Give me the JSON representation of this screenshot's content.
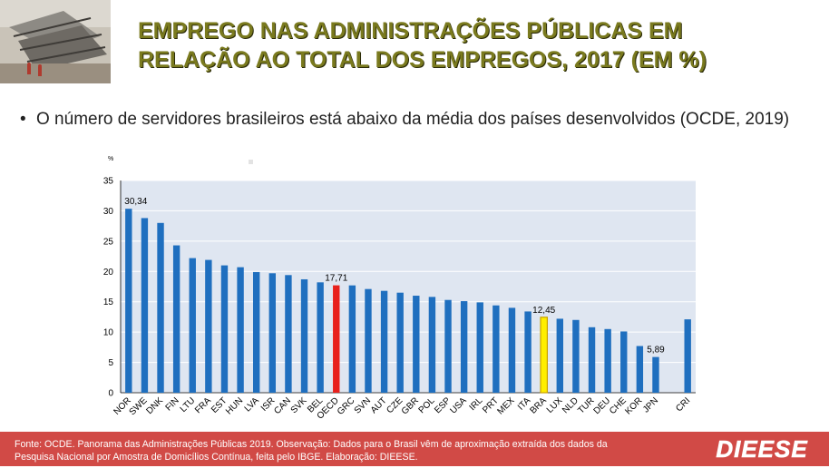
{
  "slide": {
    "title_line1": "EMPREGO NAS ADMINISTRAÇÕES PÚBLICAS EM",
    "title_line2": "RELAÇÃO AO TOTAL DOS EMPREGOS, 2017 (EM %)",
    "bullet": "O número de servidores brasileiros está abaixo da média dos países desenvolvidos (OCDE, 2019)",
    "footer_line1": "Fonte: OCDE. Panorama das Administrações Públicas 2019.  Observação: Dados para o Brasil vêm de aproximação extraída dos dados da",
    "footer_line2": "Pesquisa Nacional por Amostra de Domicílios Contínua, feita pelo IBGE. Elaboração: DIEESE.",
    "logo_text": "DIEESE"
  },
  "colors": {
    "bar": "#1f6fbf",
    "oecd": "#e8201c",
    "bra": "#ffee00",
    "bra_border": "#c8a000",
    "footer": "#d14a46",
    "title": "#7a7a1e"
  },
  "chart_data": {
    "type": "bar",
    "unit_label": "%",
    "ylim": [
      0,
      35
    ],
    "yticks": [
      0,
      5,
      10,
      15,
      20,
      25,
      30,
      35
    ],
    "grid": true,
    "categories": [
      "NOR",
      "SWE",
      "DNK",
      "FIN",
      "LTU",
      "FRA",
      "EST",
      "HUN",
      "LVA",
      "ISR",
      "CAN",
      "SVK",
      "BEL",
      "OECD",
      "GRC",
      "SVN",
      "AUT",
      "CZE",
      "GBR",
      "POL",
      "ESP",
      "USA",
      "IRL",
      "PRT",
      "MEX",
      "ITA",
      "BRA",
      "LUX",
      "NLD",
      "TUR",
      "DEU",
      "CHE",
      "KOR",
      "JPN",
      "",
      "CRI"
    ],
    "values": [
      30.34,
      28.8,
      28.0,
      24.3,
      22.2,
      21.9,
      21.0,
      20.7,
      19.9,
      19.7,
      19.4,
      18.7,
      18.2,
      17.71,
      17.7,
      17.1,
      16.8,
      16.5,
      16.0,
      15.8,
      15.3,
      15.1,
      14.9,
      14.4,
      14.0,
      13.4,
      12.45,
      12.2,
      12.0,
      10.8,
      10.5,
      10.1,
      7.7,
      5.89,
      null,
      12.1
    ],
    "highlight": {
      "OECD": "oecd",
      "BRA": "bra"
    },
    "data_labels": [
      {
        "category": "NOR",
        "text": "30,34"
      },
      {
        "category": "OECD",
        "text": "17,71"
      },
      {
        "category": "BRA",
        "text": "12,45"
      },
      {
        "category": "JPN",
        "text": "5,89"
      }
    ]
  }
}
